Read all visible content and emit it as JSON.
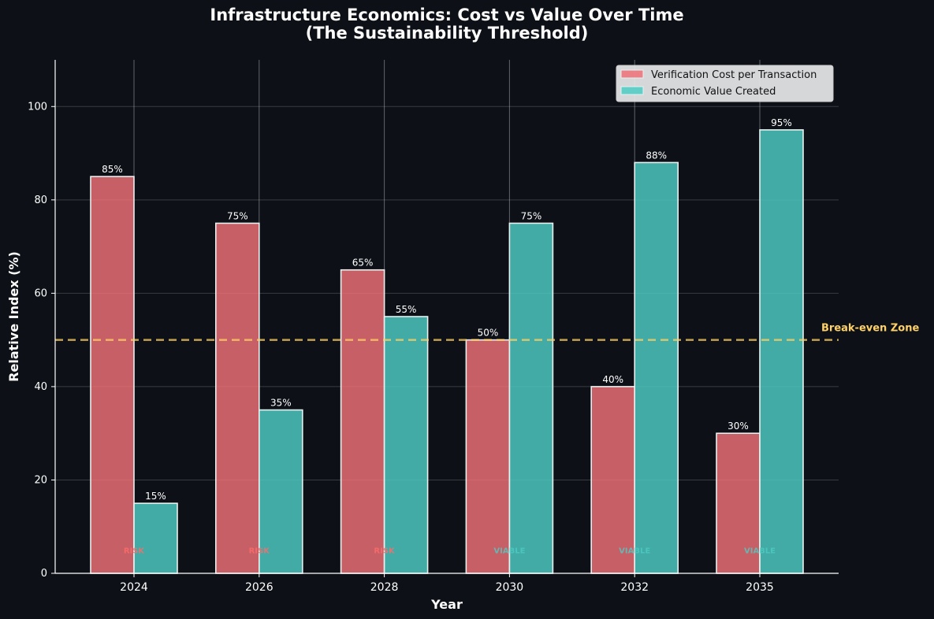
{
  "chart_data": {
    "type": "bar",
    "title": "Infrastructure Economics: Cost vs Value Over Time",
    "subtitle": "(The Sustainability Threshold)",
    "xlabel": "Year",
    "ylabel": "Relative Index (%)",
    "categories": [
      "2024",
      "2026",
      "2028",
      "2030",
      "2032",
      "2035"
    ],
    "ylim": [
      0,
      110
    ],
    "yticks": [
      0,
      20,
      40,
      60,
      80,
      100
    ],
    "grid": true,
    "legend_position": "top-right",
    "series": [
      {
        "name": "Verification Cost per Transaction",
        "values": [
          85,
          75,
          65,
          50,
          40,
          30
        ],
        "labels": [
          "85%",
          "75%",
          "65%",
          "50%",
          "40%",
          "30%"
        ],
        "color": "#f07178"
      },
      {
        "name": "Economic Value Created",
        "values": [
          15,
          35,
          55,
          75,
          88,
          95
        ],
        "labels": [
          "15%",
          "35%",
          "55%",
          "75%",
          "88%",
          "95%"
        ],
        "color": "#4ecdc4"
      }
    ],
    "status_labels": [
      "RISK",
      "RISK",
      "RISK",
      "VIABLE",
      "VIABLE",
      "VIABLE"
    ],
    "status_colors": {
      "RISK": "#ff6b6b",
      "VIABLE": "#4ecdc4"
    },
    "status_value": 5,
    "threshold": {
      "value": 50,
      "label": "Break-even Zone",
      "color": "#ffd166"
    }
  }
}
